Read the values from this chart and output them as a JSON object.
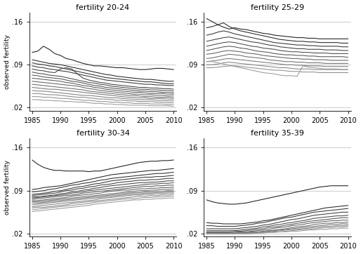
{
  "titles": [
    "fertility 20-24",
    "fertility 25-29",
    "fertility 30-34",
    "fertility 35-39"
  ],
  "ylabel": "observed fertility",
  "years": [
    1985,
    1986,
    1987,
    1988,
    1989,
    1990,
    1991,
    1992,
    1993,
    1994,
    1995,
    1996,
    1997,
    1998,
    1999,
    2000,
    2001,
    2002,
    2003,
    2004,
    2005,
    2006,
    2007,
    2008,
    2009,
    2010
  ],
  "xlim": [
    1984.5,
    2010.5
  ],
  "xticks": [
    1985,
    1990,
    1995,
    2000,
    2005,
    2010
  ],
  "ylim": [
    0.015,
    0.175
  ],
  "yticks": [
    0.02,
    0.09,
    0.16
  ],
  "ytick_labels": [
    ".02",
    ".09",
    ".16"
  ],
  "hlines": [
    0.02,
    0.09,
    0.16
  ],
  "series_20_24": [
    [
      0.11,
      0.112,
      0.12,
      0.115,
      0.108,
      0.105,
      0.1,
      0.098,
      0.095,
      0.092,
      0.09,
      0.088,
      0.088,
      0.087,
      0.086,
      0.085,
      0.085,
      0.084,
      0.083,
      0.082,
      0.082,
      0.083,
      0.084,
      0.084,
      0.083,
      0.082
    ],
    [
      0.098,
      0.096,
      0.094,
      0.092,
      0.091,
      0.09,
      0.088,
      0.086,
      0.084,
      0.082,
      0.08,
      0.078,
      0.076,
      0.074,
      0.073,
      0.071,
      0.07,
      0.069,
      0.068,
      0.067,
      0.066,
      0.066,
      0.065,
      0.064,
      0.063,
      0.063
    ],
    [
      0.093,
      0.091,
      0.09,
      0.088,
      0.087,
      0.085,
      0.083,
      0.081,
      0.079,
      0.077,
      0.075,
      0.073,
      0.071,
      0.069,
      0.068,
      0.067,
      0.066,
      0.065,
      0.064,
      0.063,
      0.062,
      0.062,
      0.061,
      0.06,
      0.059,
      0.059
    ],
    [
      0.088,
      0.086,
      0.085,
      0.083,
      0.082,
      0.08,
      0.079,
      0.077,
      0.075,
      0.073,
      0.071,
      0.069,
      0.067,
      0.065,
      0.064,
      0.063,
      0.062,
      0.061,
      0.06,
      0.059,
      0.058,
      0.058,
      0.057,
      0.057,
      0.056,
      0.056
    ],
    [
      0.083,
      0.081,
      0.08,
      0.078,
      0.077,
      0.083,
      0.085,
      0.083,
      0.075,
      0.068,
      0.065,
      0.063,
      0.061,
      0.06,
      0.058,
      0.057,
      0.056,
      0.055,
      0.054,
      0.053,
      0.053,
      0.052,
      0.052,
      0.051,
      0.051,
      0.05
    ],
    [
      0.078,
      0.076,
      0.075,
      0.073,
      0.072,
      0.071,
      0.069,
      0.067,
      0.065,
      0.063,
      0.061,
      0.06,
      0.058,
      0.057,
      0.055,
      0.054,
      0.053,
      0.052,
      0.051,
      0.05,
      0.05,
      0.049,
      0.049,
      0.048,
      0.048,
      0.047
    ],
    [
      0.073,
      0.072,
      0.07,
      0.069,
      0.068,
      0.067,
      0.065,
      0.063,
      0.062,
      0.06,
      0.058,
      0.056,
      0.055,
      0.053,
      0.052,
      0.051,
      0.05,
      0.049,
      0.048,
      0.047,
      0.047,
      0.046,
      0.046,
      0.045,
      0.045,
      0.044
    ],
    [
      0.068,
      0.067,
      0.066,
      0.065,
      0.064,
      0.063,
      0.061,
      0.06,
      0.058,
      0.056,
      0.055,
      0.053,
      0.052,
      0.05,
      0.049,
      0.048,
      0.047,
      0.046,
      0.045,
      0.045,
      0.044,
      0.043,
      0.043,
      0.043,
      0.042,
      0.042
    ],
    [
      0.063,
      0.062,
      0.061,
      0.06,
      0.059,
      0.058,
      0.057,
      0.056,
      0.055,
      0.053,
      0.051,
      0.05,
      0.048,
      0.047,
      0.046,
      0.045,
      0.044,
      0.043,
      0.042,
      0.042,
      0.041,
      0.041,
      0.04,
      0.04,
      0.039,
      0.039
    ],
    [
      0.058,
      0.057,
      0.056,
      0.055,
      0.054,
      0.053,
      0.052,
      0.051,
      0.05,
      0.049,
      0.047,
      0.046,
      0.045,
      0.044,
      0.043,
      0.042,
      0.041,
      0.04,
      0.04,
      0.039,
      0.038,
      0.038,
      0.037,
      0.037,
      0.037,
      0.036
    ],
    [
      0.053,
      0.052,
      0.051,
      0.05,
      0.05,
      0.049,
      0.048,
      0.047,
      0.046,
      0.045,
      0.044,
      0.043,
      0.042,
      0.041,
      0.04,
      0.039,
      0.038,
      0.037,
      0.037,
      0.036,
      0.036,
      0.035,
      0.035,
      0.035,
      0.034,
      0.034
    ],
    [
      0.048,
      0.047,
      0.047,
      0.046,
      0.045,
      0.044,
      0.043,
      0.042,
      0.041,
      0.04,
      0.04,
      0.039,
      0.038,
      0.037,
      0.036,
      0.036,
      0.035,
      0.034,
      0.034,
      0.033,
      0.033,
      0.033,
      0.032,
      0.032,
      0.031,
      0.031
    ],
    [
      0.043,
      0.043,
      0.042,
      0.041,
      0.041,
      0.04,
      0.039,
      0.038,
      0.037,
      0.037,
      0.036,
      0.035,
      0.034,
      0.034,
      0.033,
      0.032,
      0.032,
      0.031,
      0.031,
      0.03,
      0.03,
      0.03,
      0.029,
      0.029,
      0.028,
      0.028
    ],
    [
      0.038,
      0.038,
      0.037,
      0.037,
      0.036,
      0.035,
      0.035,
      0.034,
      0.033,
      0.032,
      0.032,
      0.031,
      0.03,
      0.03,
      0.029,
      0.029,
      0.028,
      0.028,
      0.027,
      0.027,
      0.027,
      0.026,
      0.026,
      0.026,
      0.025,
      0.025
    ],
    [
      0.033,
      0.033,
      0.032,
      0.032,
      0.031,
      0.031,
      0.03,
      0.03,
      0.029,
      0.029,
      0.028,
      0.027,
      0.027,
      0.026,
      0.026,
      0.025,
      0.025,
      0.024,
      0.024,
      0.024,
      0.024,
      0.023,
      0.023,
      0.023,
      0.023,
      0.022
    ]
  ],
  "series_25_29": [
    [
      0.165,
      0.16,
      0.155,
      0.151,
      0.148,
      0.15,
      0.148,
      0.147,
      0.145,
      0.143,
      0.141,
      0.14,
      0.138,
      0.137,
      0.136,
      0.135,
      0.134,
      0.134,
      0.133,
      0.133,
      0.132,
      0.132,
      0.132,
      0.132,
      0.132,
      0.132
    ],
    [
      0.15,
      0.152,
      0.155,
      0.158,
      0.152,
      0.148,
      0.145,
      0.143,
      0.141,
      0.139,
      0.137,
      0.135,
      0.133,
      0.131,
      0.13,
      0.129,
      0.128,
      0.128,
      0.127,
      0.127,
      0.126,
      0.126,
      0.126,
      0.126,
      0.125,
      0.125
    ],
    [
      0.138,
      0.14,
      0.143,
      0.145,
      0.143,
      0.14,
      0.138,
      0.136,
      0.134,
      0.132,
      0.13,
      0.128,
      0.126,
      0.125,
      0.124,
      0.123,
      0.122,
      0.122,
      0.121,
      0.121,
      0.12,
      0.12,
      0.12,
      0.12,
      0.119,
      0.119
    ],
    [
      0.128,
      0.13,
      0.132,
      0.134,
      0.135,
      0.133,
      0.131,
      0.129,
      0.127,
      0.126,
      0.124,
      0.122,
      0.121,
      0.119,
      0.118,
      0.117,
      0.116,
      0.116,
      0.115,
      0.115,
      0.115,
      0.114,
      0.114,
      0.114,
      0.113,
      0.113
    ],
    [
      0.12,
      0.122,
      0.124,
      0.126,
      0.127,
      0.126,
      0.124,
      0.122,
      0.12,
      0.119,
      0.117,
      0.116,
      0.115,
      0.113,
      0.112,
      0.111,
      0.111,
      0.11,
      0.11,
      0.109,
      0.109,
      0.109,
      0.108,
      0.108,
      0.108,
      0.108
    ],
    [
      0.113,
      0.115,
      0.117,
      0.119,
      0.12,
      0.119,
      0.117,
      0.116,
      0.114,
      0.112,
      0.111,
      0.11,
      0.108,
      0.107,
      0.106,
      0.106,
      0.105,
      0.105,
      0.104,
      0.104,
      0.103,
      0.103,
      0.103,
      0.103,
      0.103,
      0.102
    ],
    [
      0.107,
      0.108,
      0.11,
      0.112,
      0.113,
      0.112,
      0.111,
      0.109,
      0.108,
      0.107,
      0.105,
      0.104,
      0.103,
      0.102,
      0.101,
      0.1,
      0.1,
      0.099,
      0.099,
      0.098,
      0.098,
      0.098,
      0.097,
      0.097,
      0.097,
      0.097
    ],
    [
      0.1,
      0.101,
      0.103,
      0.105,
      0.107,
      0.106,
      0.105,
      0.103,
      0.102,
      0.101,
      0.1,
      0.098,
      0.097,
      0.096,
      0.095,
      0.095,
      0.094,
      0.094,
      0.093,
      0.093,
      0.093,
      0.092,
      0.092,
      0.092,
      0.092,
      0.092
    ],
    [
      0.095,
      0.096,
      0.097,
      0.099,
      0.1,
      0.099,
      0.098,
      0.097,
      0.096,
      0.095,
      0.094,
      0.093,
      0.092,
      0.091,
      0.09,
      0.09,
      0.089,
      0.089,
      0.088,
      0.088,
      0.088,
      0.087,
      0.087,
      0.087,
      0.087,
      0.087
    ],
    [
      0.09,
      0.09,
      0.091,
      0.093,
      0.094,
      0.093,
      0.092,
      0.091,
      0.09,
      0.089,
      0.088,
      0.087,
      0.086,
      0.085,
      0.085,
      0.084,
      0.083,
      0.083,
      0.083,
      0.082,
      0.082,
      0.082,
      0.082,
      0.082,
      0.082,
      0.082
    ],
    [
      0.085,
      0.085,
      0.086,
      0.087,
      0.088,
      0.088,
      0.087,
      0.086,
      0.085,
      0.084,
      0.083,
      0.082,
      0.081,
      0.081,
      0.08,
      0.079,
      0.079,
      0.078,
      0.078,
      0.078,
      0.077,
      0.077,
      0.077,
      0.077,
      0.077,
      0.077
    ],
    [
      0.095,
      0.095,
      0.093,
      0.091,
      0.089,
      0.087,
      0.085,
      0.083,
      0.081,
      0.079,
      0.077,
      0.076,
      0.075,
      0.073,
      0.072,
      0.072,
      0.071,
      0.088,
      0.086,
      0.085,
      0.084,
      0.083,
      0.083,
      0.083,
      0.082,
      0.082
    ]
  ],
  "series_30_34": [
    [
      0.14,
      0.133,
      0.128,
      0.125,
      0.123,
      0.123,
      0.122,
      0.122,
      0.122,
      0.122,
      0.121,
      0.122,
      0.122,
      0.124,
      0.126,
      0.128,
      0.13,
      0.132,
      0.134,
      0.136,
      0.137,
      0.138,
      0.138,
      0.139,
      0.139,
      0.14
    ],
    [
      0.092,
      0.093,
      0.095,
      0.096,
      0.097,
      0.098,
      0.1,
      0.102,
      0.104,
      0.106,
      0.108,
      0.11,
      0.112,
      0.114,
      0.116,
      0.117,
      0.118,
      0.119,
      0.12,
      0.121,
      0.122,
      0.123,
      0.123,
      0.124,
      0.125,
      0.126
    ],
    [
      0.088,
      0.089,
      0.09,
      0.092,
      0.093,
      0.095,
      0.097,
      0.099,
      0.1,
      0.102,
      0.103,
      0.105,
      0.107,
      0.108,
      0.11,
      0.111,
      0.112,
      0.113,
      0.114,
      0.115,
      0.116,
      0.117,
      0.118,
      0.118,
      0.119,
      0.12
    ],
    [
      0.084,
      0.085,
      0.086,
      0.087,
      0.089,
      0.09,
      0.092,
      0.094,
      0.096,
      0.097,
      0.099,
      0.101,
      0.102,
      0.104,
      0.106,
      0.107,
      0.108,
      0.109,
      0.11,
      0.111,
      0.112,
      0.112,
      0.113,
      0.113,
      0.114,
      0.115
    ],
    [
      0.082,
      0.083,
      0.084,
      0.085,
      0.086,
      0.088,
      0.09,
      0.091,
      0.093,
      0.094,
      0.096,
      0.097,
      0.099,
      0.1,
      0.101,
      0.103,
      0.104,
      0.105,
      0.106,
      0.107,
      0.107,
      0.108,
      0.108,
      0.109,
      0.11,
      0.11
    ],
    [
      0.08,
      0.08,
      0.081,
      0.082,
      0.083,
      0.085,
      0.086,
      0.088,
      0.089,
      0.091,
      0.092,
      0.094,
      0.095,
      0.097,
      0.098,
      0.099,
      0.1,
      0.101,
      0.102,
      0.103,
      0.103,
      0.104,
      0.104,
      0.105,
      0.106,
      0.106
    ],
    [
      0.078,
      0.079,
      0.08,
      0.081,
      0.082,
      0.083,
      0.084,
      0.086,
      0.087,
      0.088,
      0.09,
      0.091,
      0.092,
      0.093,
      0.094,
      0.095,
      0.096,
      0.097,
      0.098,
      0.099,
      0.1,
      0.101,
      0.101,
      0.102,
      0.102,
      0.103
    ],
    [
      0.076,
      0.077,
      0.078,
      0.079,
      0.08,
      0.081,
      0.082,
      0.083,
      0.084,
      0.086,
      0.087,
      0.088,
      0.089,
      0.09,
      0.091,
      0.092,
      0.093,
      0.094,
      0.095,
      0.096,
      0.097,
      0.097,
      0.098,
      0.098,
      0.099,
      0.099
    ],
    [
      0.074,
      0.074,
      0.075,
      0.076,
      0.077,
      0.078,
      0.079,
      0.081,
      0.082,
      0.083,
      0.084,
      0.085,
      0.086,
      0.088,
      0.089,
      0.09,
      0.091,
      0.091,
      0.092,
      0.093,
      0.093,
      0.094,
      0.094,
      0.095,
      0.095,
      0.096
    ],
    [
      0.072,
      0.072,
      0.073,
      0.074,
      0.075,
      0.076,
      0.077,
      0.078,
      0.079,
      0.08,
      0.081,
      0.082,
      0.083,
      0.084,
      0.085,
      0.086,
      0.087,
      0.088,
      0.089,
      0.09,
      0.09,
      0.091,
      0.091,
      0.092,
      0.092,
      0.093
    ],
    [
      0.07,
      0.07,
      0.071,
      0.072,
      0.073,
      0.074,
      0.075,
      0.076,
      0.077,
      0.078,
      0.079,
      0.08,
      0.081,
      0.082,
      0.083,
      0.084,
      0.085,
      0.086,
      0.087,
      0.087,
      0.088,
      0.088,
      0.089,
      0.089,
      0.09,
      0.09
    ],
    [
      0.067,
      0.068,
      0.069,
      0.07,
      0.071,
      0.072,
      0.073,
      0.074,
      0.075,
      0.076,
      0.077,
      0.078,
      0.079,
      0.08,
      0.081,
      0.082,
      0.083,
      0.084,
      0.085,
      0.085,
      0.086,
      0.086,
      0.087,
      0.087,
      0.088,
      0.088
    ],
    [
      0.064,
      0.065,
      0.066,
      0.067,
      0.068,
      0.069,
      0.07,
      0.071,
      0.072,
      0.073,
      0.074,
      0.075,
      0.077,
      0.078,
      0.079,
      0.08,
      0.081,
      0.082,
      0.083,
      0.083,
      0.084,
      0.084,
      0.085,
      0.085,
      0.086,
      0.086
    ],
    [
      0.062,
      0.063,
      0.063,
      0.064,
      0.065,
      0.066,
      0.067,
      0.069,
      0.07,
      0.071,
      0.072,
      0.073,
      0.074,
      0.075,
      0.076,
      0.077,
      0.078,
      0.079,
      0.08,
      0.081,
      0.081,
      0.082,
      0.082,
      0.083,
      0.083,
      0.084
    ],
    [
      0.059,
      0.06,
      0.061,
      0.062,
      0.063,
      0.064,
      0.065,
      0.066,
      0.067,
      0.068,
      0.069,
      0.071,
      0.072,
      0.073,
      0.074,
      0.075,
      0.076,
      0.077,
      0.077,
      0.078,
      0.079,
      0.079,
      0.08,
      0.08,
      0.081,
      0.081
    ],
    [
      0.056,
      0.057,
      0.058,
      0.059,
      0.06,
      0.061,
      0.062,
      0.063,
      0.064,
      0.065,
      0.066,
      0.068,
      0.069,
      0.07,
      0.071,
      0.072,
      0.073,
      0.074,
      0.075,
      0.075,
      0.076,
      0.076,
      0.077,
      0.077,
      0.078,
      0.078
    ]
  ],
  "series_35_39": [
    [
      0.075,
      0.072,
      0.07,
      0.069,
      0.068,
      0.068,
      0.069,
      0.07,
      0.072,
      0.074,
      0.076,
      0.078,
      0.08,
      0.082,
      0.084,
      0.086,
      0.088,
      0.09,
      0.092,
      0.094,
      0.096,
      0.097,
      0.098,
      0.098,
      0.098,
      0.098
    ],
    [
      0.038,
      0.037,
      0.037,
      0.036,
      0.036,
      0.036,
      0.036,
      0.037,
      0.038,
      0.039,
      0.041,
      0.042,
      0.044,
      0.046,
      0.048,
      0.05,
      0.052,
      0.054,
      0.056,
      0.058,
      0.06,
      0.062,
      0.063,
      0.064,
      0.065,
      0.066
    ],
    [
      0.033,
      0.033,
      0.032,
      0.032,
      0.032,
      0.032,
      0.033,
      0.034,
      0.035,
      0.037,
      0.038,
      0.04,
      0.042,
      0.044,
      0.046,
      0.047,
      0.049,
      0.051,
      0.053,
      0.055,
      0.056,
      0.057,
      0.058,
      0.059,
      0.06,
      0.061
    ],
    [
      0.028,
      0.028,
      0.028,
      0.028,
      0.028,
      0.028,
      0.029,
      0.03,
      0.031,
      0.032,
      0.034,
      0.035,
      0.037,
      0.039,
      0.041,
      0.043,
      0.044,
      0.046,
      0.048,
      0.05,
      0.051,
      0.052,
      0.053,
      0.054,
      0.055,
      0.055
    ],
    [
      0.025,
      0.025,
      0.025,
      0.025,
      0.025,
      0.025,
      0.026,
      0.027,
      0.028,
      0.029,
      0.031,
      0.032,
      0.034,
      0.035,
      0.037,
      0.038,
      0.04,
      0.041,
      0.043,
      0.045,
      0.046,
      0.047,
      0.048,
      0.049,
      0.049,
      0.05
    ],
    [
      0.023,
      0.023,
      0.023,
      0.023,
      0.023,
      0.024,
      0.024,
      0.025,
      0.026,
      0.027,
      0.028,
      0.03,
      0.031,
      0.032,
      0.034,
      0.035,
      0.037,
      0.038,
      0.04,
      0.041,
      0.042,
      0.043,
      0.044,
      0.045,
      0.046,
      0.046
    ],
    [
      0.022,
      0.022,
      0.022,
      0.022,
      0.022,
      0.022,
      0.023,
      0.023,
      0.024,
      0.025,
      0.026,
      0.027,
      0.029,
      0.03,
      0.031,
      0.033,
      0.034,
      0.035,
      0.037,
      0.038,
      0.039,
      0.04,
      0.041,
      0.041,
      0.042,
      0.042
    ],
    [
      0.021,
      0.021,
      0.021,
      0.021,
      0.021,
      0.022,
      0.022,
      0.022,
      0.023,
      0.023,
      0.024,
      0.025,
      0.026,
      0.027,
      0.028,
      0.03,
      0.031,
      0.032,
      0.033,
      0.035,
      0.036,
      0.037,
      0.037,
      0.038,
      0.038,
      0.039
    ],
    [
      0.021,
      0.021,
      0.021,
      0.021,
      0.021,
      0.021,
      0.021,
      0.021,
      0.022,
      0.022,
      0.023,
      0.024,
      0.025,
      0.026,
      0.027,
      0.028,
      0.029,
      0.03,
      0.031,
      0.032,
      0.033,
      0.034,
      0.035,
      0.035,
      0.036,
      0.036
    ],
    [
      0.02,
      0.02,
      0.02,
      0.02,
      0.02,
      0.02,
      0.021,
      0.021,
      0.021,
      0.022,
      0.022,
      0.023,
      0.024,
      0.025,
      0.026,
      0.027,
      0.027,
      0.028,
      0.029,
      0.03,
      0.031,
      0.032,
      0.032,
      0.033,
      0.033,
      0.034
    ],
    [
      0.02,
      0.02,
      0.02,
      0.02,
      0.02,
      0.02,
      0.02,
      0.02,
      0.021,
      0.021,
      0.022,
      0.022,
      0.023,
      0.023,
      0.024,
      0.025,
      0.026,
      0.027,
      0.027,
      0.028,
      0.029,
      0.03,
      0.03,
      0.031,
      0.031,
      0.032
    ],
    [
      0.02,
      0.02,
      0.02,
      0.02,
      0.02,
      0.02,
      0.02,
      0.02,
      0.02,
      0.021,
      0.021,
      0.022,
      0.022,
      0.023,
      0.023,
      0.024,
      0.024,
      0.025,
      0.026,
      0.026,
      0.027,
      0.027,
      0.028,
      0.028,
      0.029,
      0.029
    ]
  ],
  "line_color": "#1a1a1a",
  "bg_color": "#ffffff",
  "fig_facecolor": "#ffffff"
}
